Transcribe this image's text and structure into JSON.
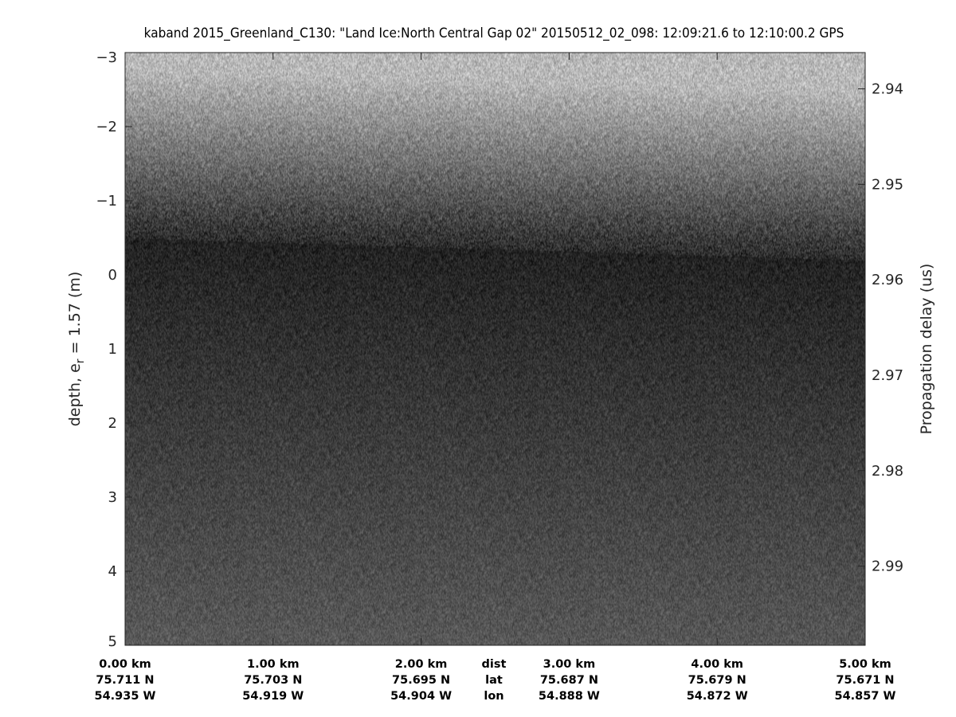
{
  "chart_data": {
    "type": "heatmap",
    "colormap": "gray",
    "title": "kaband 2015_Greenland_C130: \"Land Ice:North Central Gap 02\"  20150512_02_098: 12:09:21.6 to 12:10:00.2 GPS",
    "ylabel_left": "depth, e",
    "ylabel_left_sub": "r",
    "ylabel_left_suffix": " = 1.57 (m)",
    "ylabel_right": "Propagation delay (us)",
    "ylim_left": [
      -3,
      5
    ],
    "yticks_left": [
      "-3",
      "-2",
      "-1",
      "0",
      "1",
      "2",
      "3",
      "4",
      "5"
    ],
    "yticks_left_values": [
      -3,
      -2,
      -1,
      0,
      1,
      2,
      3,
      4,
      5
    ],
    "yticks_right": [
      "2.94",
      "2.95",
      "2.96",
      "2.97",
      "2.98",
      "2.99"
    ],
    "yticks_right_values": [
      2.94,
      2.95,
      2.96,
      2.97,
      2.98,
      2.99
    ],
    "ylim_right": [
      2.9362,
      2.9983
    ],
    "xlim_km": [
      0,
      5
    ],
    "xticks": {
      "row_labels": [
        "dist",
        "lat",
        "lon"
      ],
      "values_km": [
        0,
        1,
        2,
        3,
        4,
        5
      ],
      "dist": [
        "0.00 km",
        "1.00 km",
        "2.00 km",
        "3.00 km",
        "4.00 km",
        "5.00 km"
      ],
      "lat": [
        "75.711 N",
        "75.703 N",
        "75.695 N",
        "75.687 N",
        "75.679 N",
        "75.671 N"
      ],
      "lon": [
        "54.935 W",
        "54.919 W",
        "54.904 W",
        "54.888 W",
        "54.872 W",
        "54.857 W"
      ]
    },
    "surface_depth_m": [
      -0.5,
      -0.2
    ],
    "grid": false
  }
}
